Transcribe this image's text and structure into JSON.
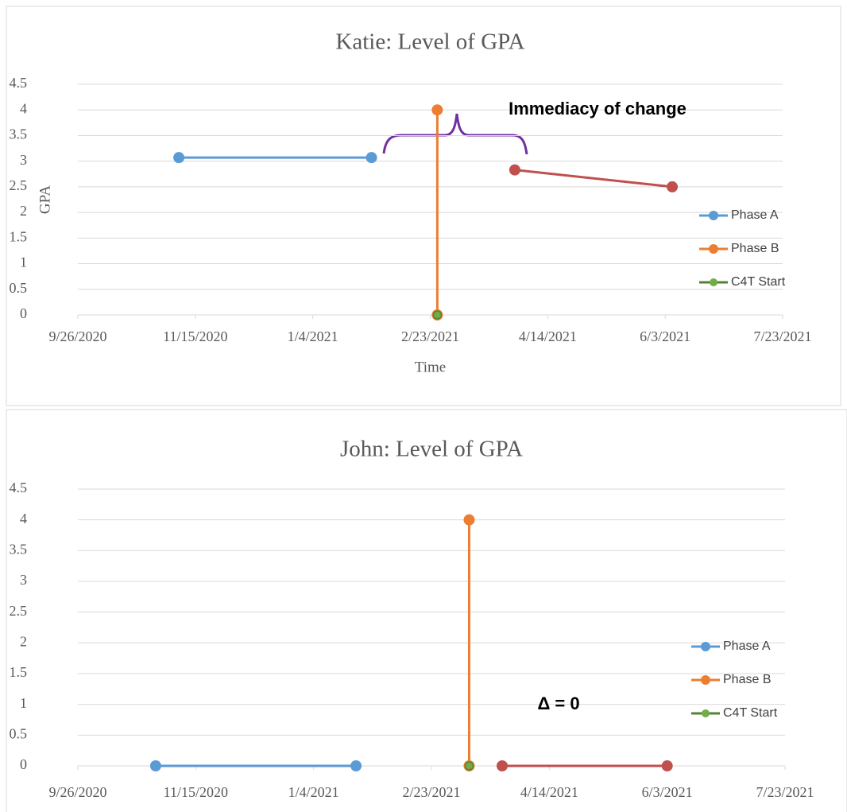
{
  "chart_data": [
    {
      "type": "line",
      "title": "Katie: Level of GPA",
      "xlabel": "Time",
      "ylabel": "GPA",
      "xlim": [
        "9/26/2020",
        "7/23/2021"
      ],
      "xticks": [
        "9/26/2020",
        "11/15/2020",
        "1/4/2021",
        "2/23/2021",
        "4/14/2021",
        "6/3/2021",
        "7/23/2021"
      ],
      "ylim": [
        0,
        4.5
      ],
      "yticks": [
        0,
        0.5,
        1,
        1.5,
        2,
        2.5,
        3,
        3.5,
        4,
        4.5
      ],
      "grid": true,
      "series": [
        {
          "name": "Phase A",
          "color": "#5b9bd5",
          "x": [
            "11/8/2020",
            "1/29/2021"
          ],
          "values": [
            3.07,
            3.07
          ]
        },
        {
          "name": "Phase B",
          "color": "#ed7d31",
          "x": [
            "2/26/2021",
            "2/26/2021"
          ],
          "values": [
            4,
            0
          ]
        },
        {
          "name": "C4T Start",
          "color": "#70ad47",
          "x": [
            "2/26/2021"
          ],
          "values": [
            0
          ]
        },
        {
          "color": "#c0504d",
          "x": [
            "3/31/2021",
            "6/6/2021"
          ],
          "values": [
            2.83,
            2.5
          ]
        }
      ],
      "annotations": [
        "Immediacy of change"
      ]
    },
    {
      "type": "line",
      "title": "John: Level of GPA",
      "xlim": [
        "9/26/2020",
        "7/23/2021"
      ],
      "xticks": [
        "9/26/2020",
        "11/15/2020",
        "1/4/2021",
        "2/23/2021",
        "4/14/2021",
        "6/3/2021",
        "7/23/2021"
      ],
      "ylim": [
        0,
        4.5
      ],
      "yticks": [
        0,
        0.5,
        1,
        1.5,
        2,
        2.5,
        3,
        3.5,
        4,
        4.5
      ],
      "grid": true,
      "series": [
        {
          "name": "Phase A",
          "color": "#5b9bd5",
          "x": [
            "10/29/2020",
            "1/22/2021"
          ],
          "values": [
            0,
            0
          ]
        },
        {
          "name": "Phase B",
          "color": "#ed7d31",
          "x": [
            "3/11/2021",
            "3/11/2021"
          ],
          "values": [
            4,
            0
          ]
        },
        {
          "name": "C4T Start",
          "color": "#70ad47",
          "x": [
            "3/11/2021"
          ],
          "values": [
            0
          ]
        },
        {
          "color": "#c0504d",
          "x": [
            "3/25/2021",
            "6/3/2021"
          ],
          "values": [
            0,
            0
          ]
        }
      ],
      "annotations": [
        "Δ = 0"
      ]
    }
  ]
}
